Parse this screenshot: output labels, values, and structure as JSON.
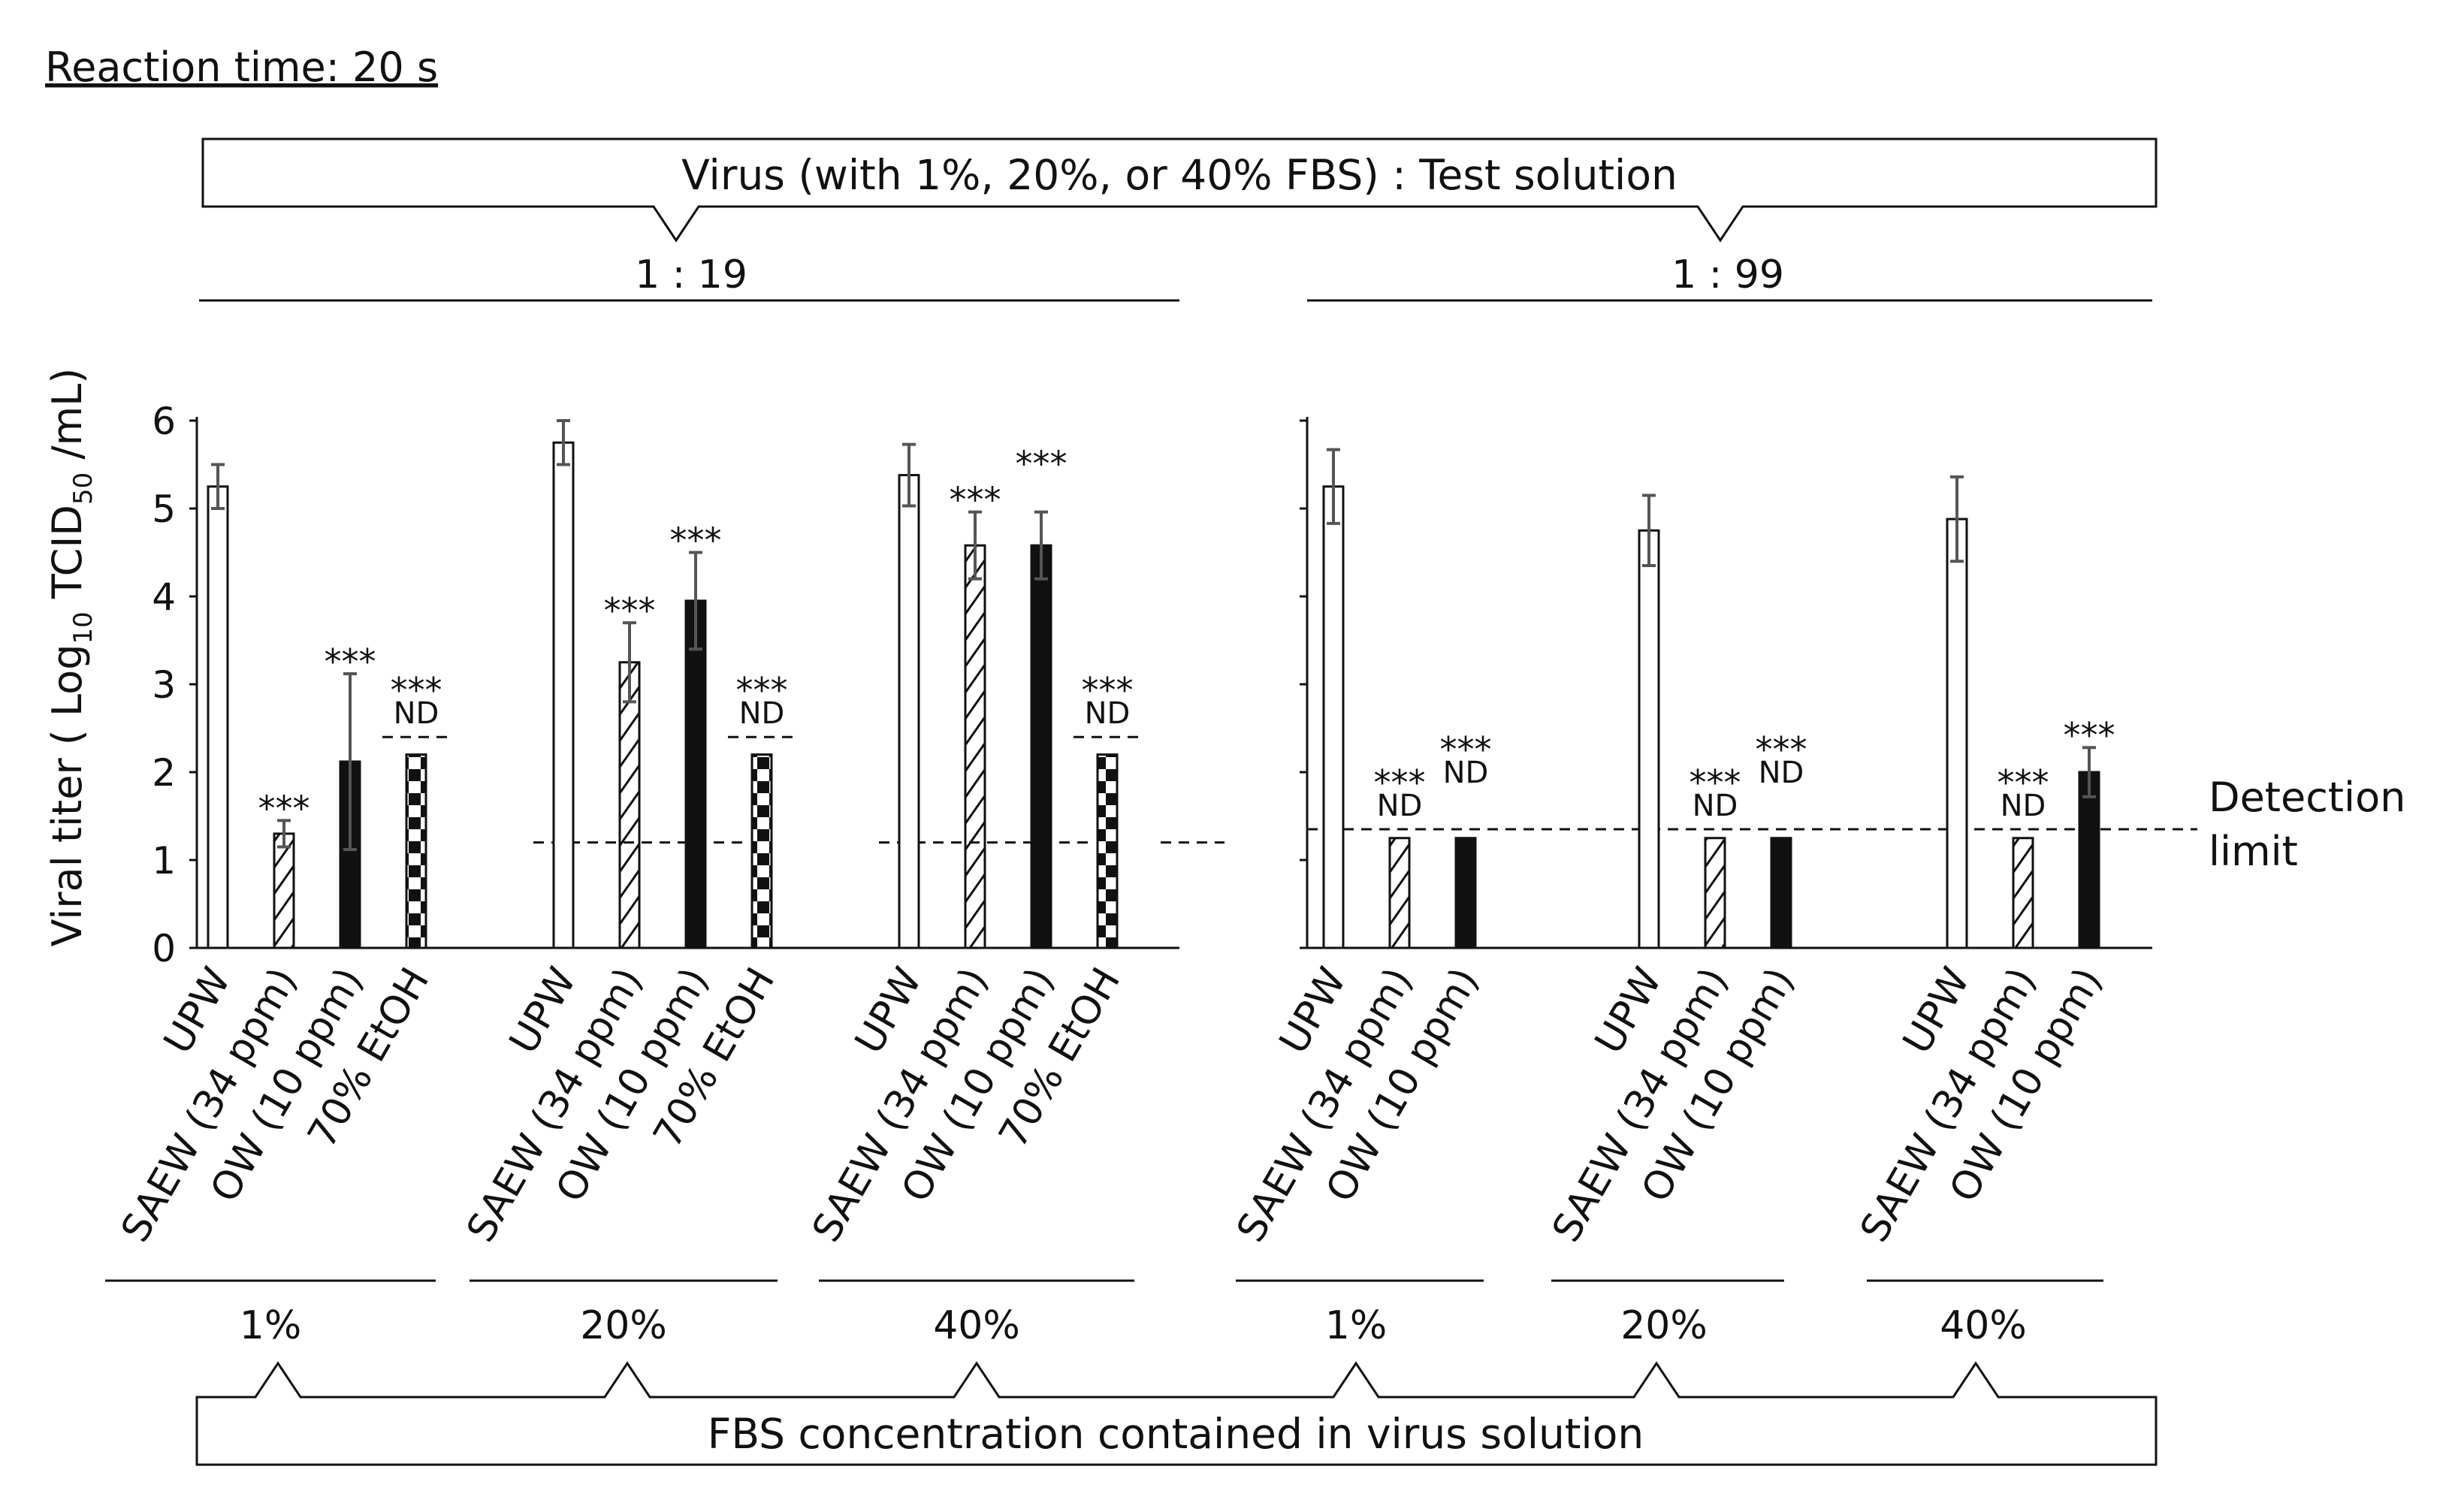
{
  "figure": {
    "reaction_time": "Reaction time: 20 s",
    "top_bracket_label": "Virus (with 1%, 20%, or 40% FBS) : Test solution",
    "bottom_bracket_label": "FBS concentration contained in virus solution",
    "detection_limit_label_line1": "Detection",
    "detection_limit_label_line2": "limit",
    "y_axis_label_prefix": "Viral titer ( Log",
    "y_axis_label_sub1": "10",
    "y_axis_label_mid": " TCID",
    "y_axis_label_sub2": "50",
    "y_axis_label_suffix": " /mL)",
    "significance_label": "***",
    "nd_label": "ND"
  },
  "colors": {
    "bar_fill_solid": "#111111",
    "bar_outline": "#111111",
    "error_bar": "#555555",
    "background": "#ffffff"
  },
  "chart_data": [
    {
      "type": "bar",
      "ratio_label": "1 : 19",
      "ylim": [
        0,
        6
      ],
      "yticks": [
        0,
        1,
        2,
        3,
        4,
        5,
        6
      ],
      "ylabel": "Viral titer ( Log10 TCID50 /mL)",
      "detection_limit": 1.2,
      "groups": [
        {
          "fbs": "1%",
          "bars": [
            {
              "label": "UPW",
              "pattern": "open",
              "value": 5.25,
              "error": 0.25,
              "sig": "",
              "nd": false
            },
            {
              "label": "SAEW (34 ppm)",
              "pattern": "hatch",
              "value": 1.3,
              "error": 0.15,
              "sig": "***",
              "nd": false
            },
            {
              "label": "OW (10 ppm)",
              "pattern": "solid",
              "value": 2.12,
              "error": 1.0,
              "sig": "***",
              "nd": false
            },
            {
              "label": "70% EtOH",
              "pattern": "checker",
              "value": 2.2,
              "error": 0,
              "sig": "***",
              "nd": true,
              "nd_limit": 2.4
            }
          ]
        },
        {
          "fbs": "20%",
          "bars": [
            {
              "label": "UPW",
              "pattern": "open",
              "value": 5.75,
              "error": 0.25,
              "sig": "",
              "nd": false
            },
            {
              "label": "SAEW (34 ppm)",
              "pattern": "hatch",
              "value": 3.25,
              "error": 0.45,
              "sig": "***",
              "nd": false
            },
            {
              "label": "OW (10 ppm)",
              "pattern": "solid",
              "value": 3.95,
              "error": 0.55,
              "sig": "***",
              "nd": false
            },
            {
              "label": "70% EtOH",
              "pattern": "checker",
              "value": 2.2,
              "error": 0,
              "sig": "***",
              "nd": true,
              "nd_limit": 2.4
            }
          ]
        },
        {
          "fbs": "40%",
          "bars": [
            {
              "label": "UPW",
              "pattern": "open",
              "value": 5.38,
              "error": 0.35,
              "sig": "",
              "nd": false
            },
            {
              "label": "SAEW (34 ppm)",
              "pattern": "hatch",
              "value": 4.58,
              "error": 0.38,
              "sig": "***",
              "nd": false
            },
            {
              "label": "OW (10 ppm)",
              "pattern": "solid",
              "value": 4.58,
              "error": 0.38,
              "sig": "***",
              "nd": false
            },
            {
              "label": "70% EtOH",
              "pattern": "checker",
              "value": 2.2,
              "error": 0,
              "sig": "***",
              "nd": true,
              "nd_limit": 2.4
            }
          ]
        }
      ]
    },
    {
      "type": "bar",
      "ratio_label": "1 : 99",
      "ylim": [
        0,
        6
      ],
      "yticks": [
        0,
        1,
        2,
        3,
        4,
        5,
        6
      ],
      "ylabel": "",
      "detection_limit": 1.35,
      "groups": [
        {
          "fbs": "1%",
          "bars": [
            {
              "label": "UPW",
              "pattern": "open",
              "value": 5.25,
              "error": 0.42,
              "sig": "",
              "nd": false
            },
            {
              "label": "SAEW (34 ppm)",
              "pattern": "hatch",
              "value": 1.25,
              "error": 0,
              "sig": "***",
              "nd": true
            },
            {
              "label": "OW (10 ppm)",
              "pattern": "solid",
              "value": 1.25,
              "error": 0,
              "sig": "***",
              "nd": true
            }
          ]
        },
        {
          "fbs": "20%",
          "bars": [
            {
              "label": "UPW",
              "pattern": "open",
              "value": 4.75,
              "error": 0.4,
              "sig": "",
              "nd": false
            },
            {
              "label": "SAEW (34 ppm)",
              "pattern": "hatch",
              "value": 1.25,
              "error": 0,
              "sig": "***",
              "nd": true
            },
            {
              "label": "OW (10 ppm)",
              "pattern": "solid",
              "value": 1.25,
              "error": 0,
              "sig": "***",
              "nd": true
            }
          ]
        },
        {
          "fbs": "40%",
          "bars": [
            {
              "label": "UPW",
              "pattern": "open",
              "value": 4.88,
              "error": 0.48,
              "sig": "",
              "nd": false
            },
            {
              "label": "SAEW (34 ppm)",
              "pattern": "hatch",
              "value": 1.25,
              "error": 0,
              "sig": "***",
              "nd": true
            },
            {
              "label": "OW (10 ppm)",
              "pattern": "solid",
              "value": 2.0,
              "error": 0.28,
              "sig": "***",
              "nd": false
            }
          ]
        }
      ]
    }
  ]
}
